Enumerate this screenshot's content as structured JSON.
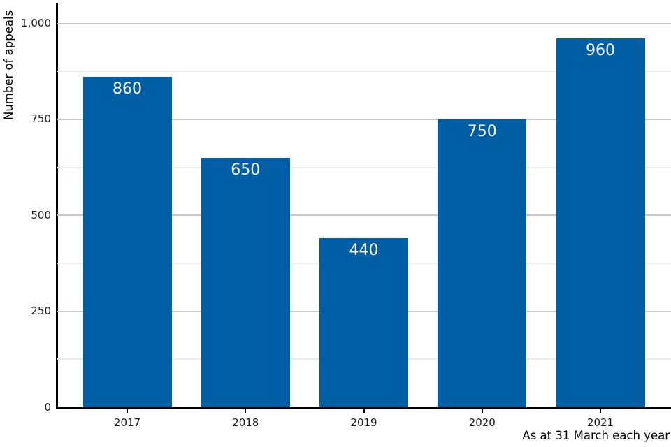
{
  "chart_data": {
    "type": "bar",
    "title": "",
    "categories": [
      "2017",
      "2018",
      "2019",
      "2020",
      "2021"
    ],
    "values": [
      860,
      650,
      440,
      750,
      960
    ],
    "value_labels": [
      "860",
      "650",
      "440",
      "750",
      "960"
    ],
    "xlabel": "As at 31 March each year",
    "ylabel": "Number of appeals",
    "ylim": [
      0,
      1000
    ],
    "y_major_ticks": [
      0,
      250,
      500,
      750,
      1000
    ],
    "y_major_tick_labels": [
      "0",
      "250",
      "500",
      "750",
      "1,000"
    ],
    "y_minor_ticks": [
      125,
      375,
      625,
      875
    ],
    "grid": "horizontal-major-and-minor",
    "legend": "none",
    "bar_color": "#005ea5",
    "value_label_color": "#ffffff",
    "axis_color": "#000000",
    "tick_label_color": "#1a1a1a",
    "major_grid_color": "#c7c7c7",
    "minor_grid_color": "#ececec",
    "background_color": "#ffffff"
  }
}
